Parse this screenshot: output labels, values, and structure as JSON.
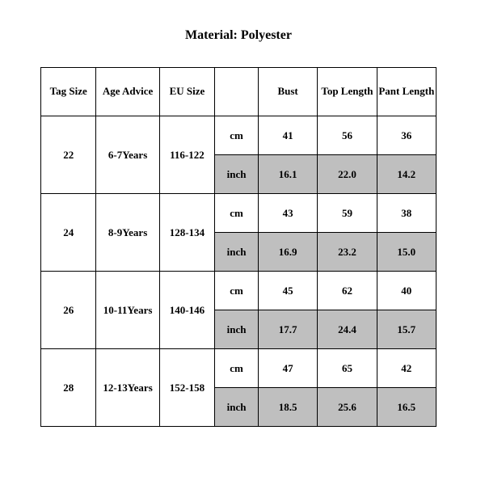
{
  "title": "Material: Polyester",
  "headers": {
    "tag_size": "Tag Size",
    "age_advice": "Age Advice",
    "eu_size": "EU Size",
    "unit": "",
    "bust": "Bust",
    "top_length": "Top Length",
    "pant_length": "Pant Length"
  },
  "units": {
    "cm": "cm",
    "inch": "inch"
  },
  "rows": [
    {
      "tag": "22",
      "age": "6-7Years",
      "eu": "116-122",
      "cm": {
        "bust": "41",
        "top": "56",
        "pant": "36"
      },
      "inch": {
        "bust": "16.1",
        "top": "22.0",
        "pant": "14.2"
      }
    },
    {
      "tag": "24",
      "age": "8-9Years",
      "eu": "128-134",
      "cm": {
        "bust": "43",
        "top": "59",
        "pant": "38"
      },
      "inch": {
        "bust": "16.9",
        "top": "23.2",
        "pant": "15.0"
      }
    },
    {
      "tag": "26",
      "age": "10-11Years",
      "eu": "140-146",
      "cm": {
        "bust": "45",
        "top": "62",
        "pant": "40"
      },
      "inch": {
        "bust": "17.7",
        "top": "24.4",
        "pant": "15.7"
      }
    },
    {
      "tag": "28",
      "age": "12-13Years",
      "eu": "152-158",
      "cm": {
        "bust": "47",
        "top": "65",
        "pant": "42"
      },
      "inch": {
        "bust": "18.5",
        "top": "25.6",
        "pant": "16.5"
      }
    }
  ],
  "colors": {
    "shaded": "#bfbfbf",
    "border": "#000000",
    "bg": "#ffffff"
  }
}
